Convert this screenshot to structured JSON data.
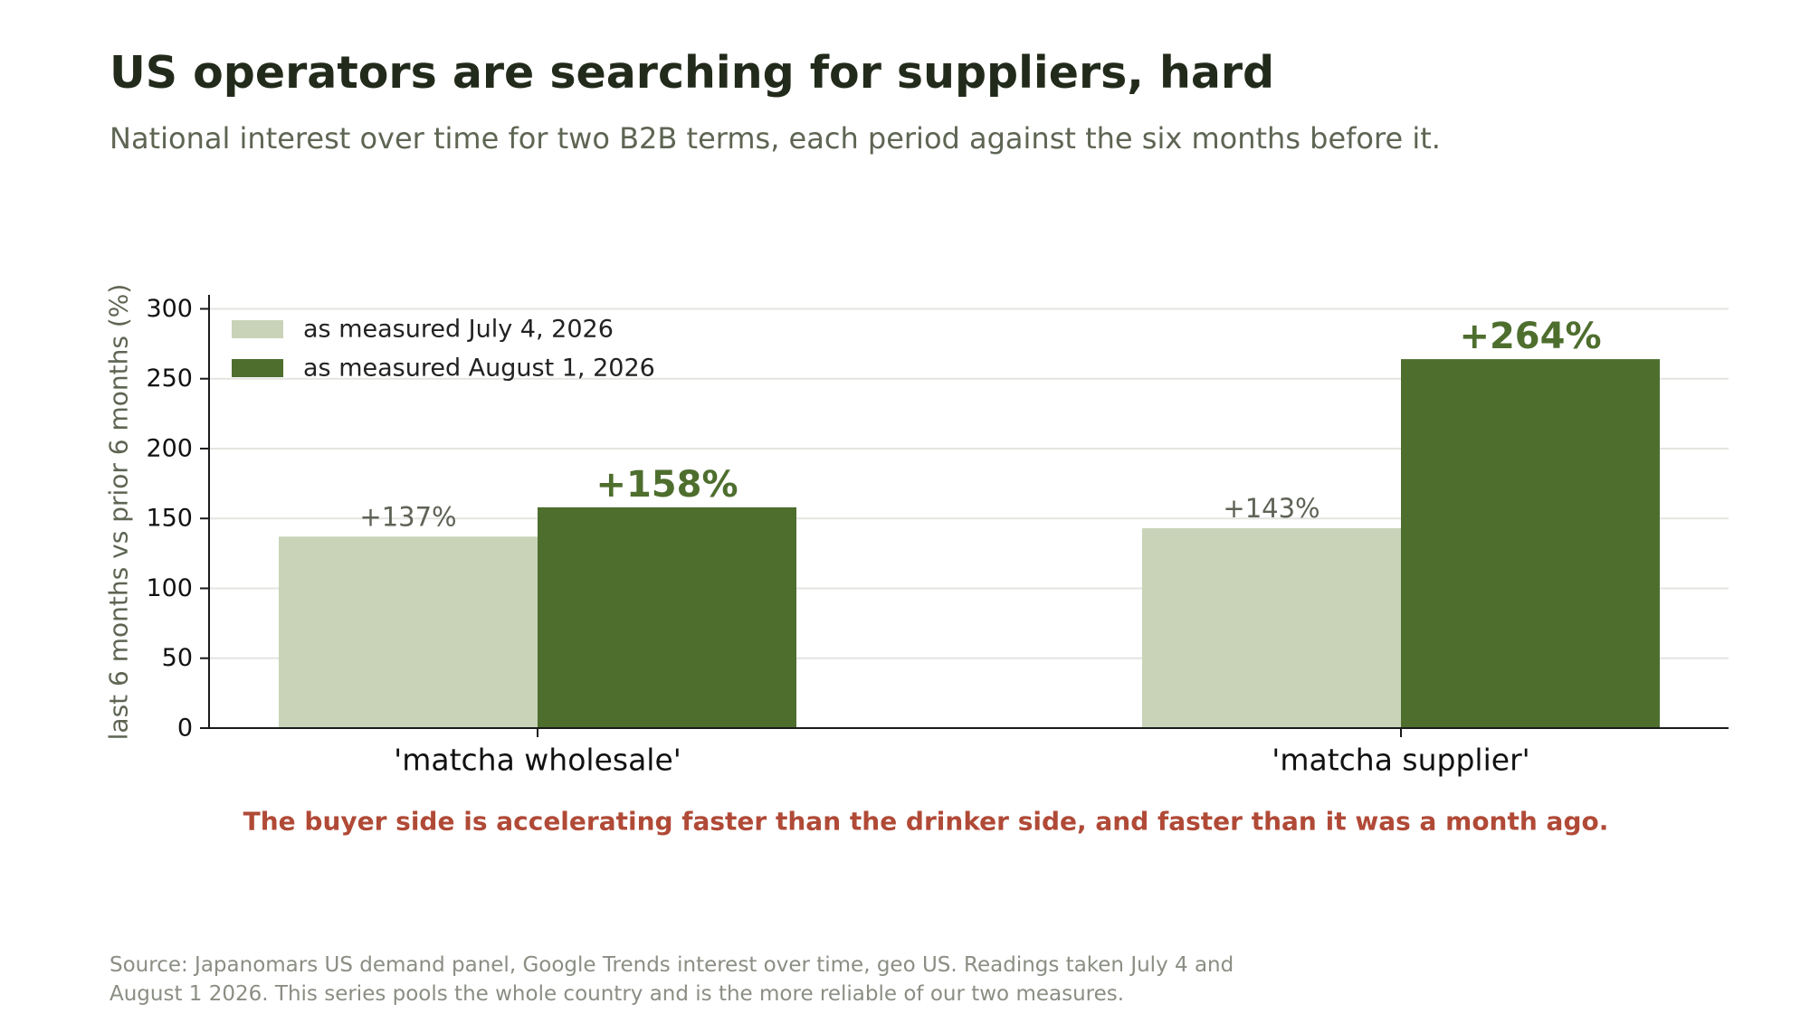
{
  "title": "US operators are searching for suppliers, hard",
  "subtitle": "National interest over time for two B2B terms, each period against the six months before it.",
  "callout": "The buyer side is accelerating faster than the drinker side, and faster than it was a month ago.",
  "footnote": {
    "line1": "Source: Japanomars US demand panel, Google Trends interest over time, geo US. Readings taken July 4 and",
    "line2": "August 1 2026. This series pools the whole country and is the more reliable of our two measures."
  },
  "colors": {
    "july": "#c9d3b8",
    "august": "#4e6e2e",
    "callout": "#b04a37",
    "grid": "#e4e4e0",
    "axis": "#1a1a1a"
  },
  "chart_data": {
    "type": "bar",
    "categories": [
      "'matcha wholesale'",
      "'matcha supplier'"
    ],
    "series": [
      {
        "name": "as measured July 4, 2026",
        "values": [
          137,
          143
        ],
        "labels": [
          "+137%",
          "+143%"
        ]
      },
      {
        "name": "as measured August 1, 2026",
        "values": [
          158,
          264
        ],
        "labels": [
          "+158%",
          "+264%"
        ]
      }
    ],
    "ylabel": "last 6 months vs prior 6 months (%)",
    "xlabel": "",
    "ylim": [
      0,
      310
    ],
    "yticks": [
      0,
      50,
      100,
      150,
      200,
      250,
      300
    ],
    "grid": true,
    "legend_position": "top-left"
  }
}
